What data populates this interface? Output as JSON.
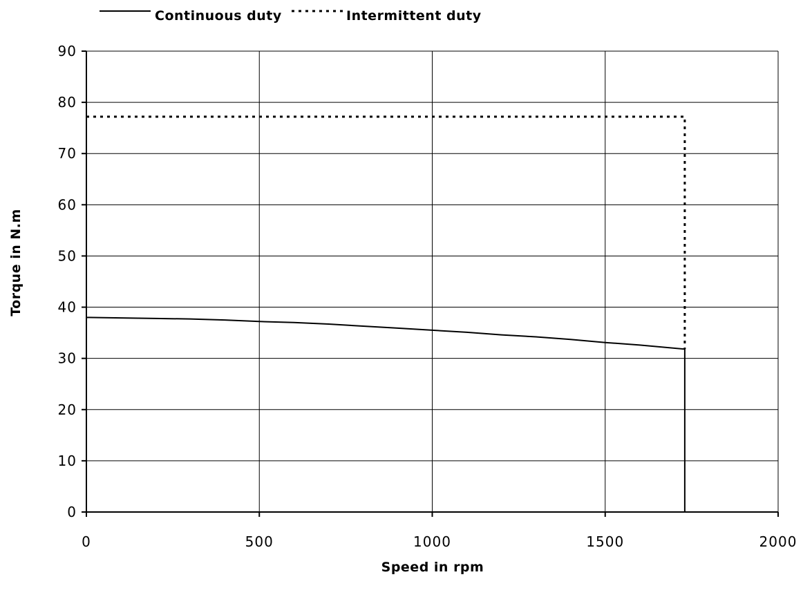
{
  "chart_data": {
    "type": "line",
    "xlabel": "Speed in rpm",
    "ylabel": "Torque in N.m",
    "xlim": [
      0,
      2000
    ],
    "ylim": [
      0,
      90
    ],
    "xticks": [
      0,
      500,
      1000,
      1500,
      2000
    ],
    "yticks": [
      0,
      10,
      20,
      30,
      40,
      50,
      60,
      70,
      80,
      90
    ],
    "grid": true,
    "legend_position": "top-left",
    "series": [
      {
        "name": "Continuous duty",
        "style": "solid",
        "color": "#000000",
        "x": [
          0,
          100,
          200,
          300,
          400,
          500,
          600,
          700,
          800,
          900,
          1000,
          1100,
          1200,
          1300,
          1400,
          1500,
          1600,
          1730,
          1730
        ],
        "y": [
          38,
          37.9,
          37.8,
          37.7,
          37.5,
          37.2,
          37.0,
          36.7,
          36.3,
          35.9,
          35.5,
          35.1,
          34.6,
          34.2,
          33.7,
          33.1,
          32.6,
          31.8,
          0
        ]
      },
      {
        "name": "Intermittent duty",
        "style": "dotted",
        "color": "#000000",
        "x": [
          0,
          1730,
          1730
        ],
        "y": [
          77.2,
          77.2,
          31.8
        ]
      }
    ]
  }
}
